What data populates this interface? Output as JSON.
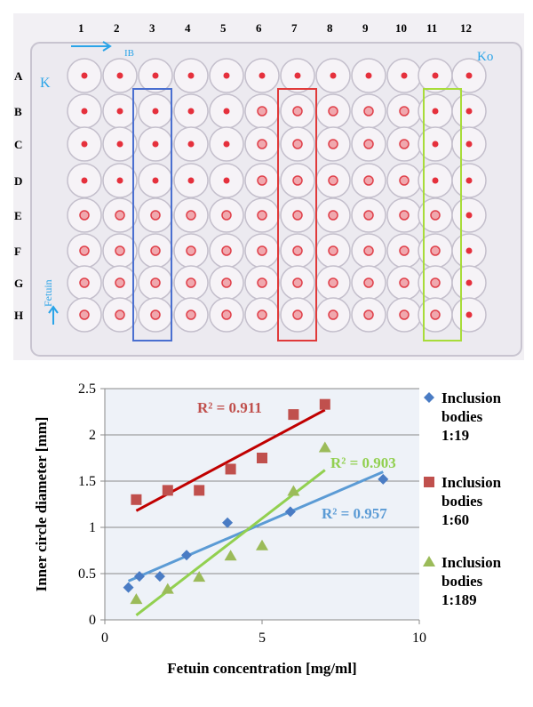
{
  "plate": {
    "columns": [
      "1",
      "2",
      "3",
      "4",
      "5",
      "6",
      "7",
      "8",
      "9",
      "10",
      "11",
      "12"
    ],
    "rows": [
      "A",
      "B",
      "C",
      "D",
      "E",
      "F",
      "G",
      "H"
    ],
    "annotations": {
      "top_left": "IB",
      "top_right": "Ko",
      "row_a": "K",
      "left_side": "Fetuin"
    },
    "highlight_boxes": [
      {
        "column": "3",
        "color": "#4a6fd0"
      },
      {
        "column": "7",
        "color": "#e03a3a"
      },
      {
        "column": "11",
        "color": "#a8dc3a"
      }
    ]
  },
  "chart_data": {
    "type": "scatter",
    "xlabel": "Fetuin concentration [mg/ml]",
    "ylabel": "Inner circle diameter [mm]",
    "xlim": [
      0,
      10
    ],
    "ylim": [
      0,
      2.5
    ],
    "xticks": [
      "0",
      "5",
      "10"
    ],
    "yticks": [
      "0",
      "0.5",
      "1",
      "1.5",
      "2",
      "2.5"
    ],
    "grid": true,
    "legend_position": "right",
    "series": [
      {
        "name": "Inclusion bodies 1:19",
        "legend_lines": [
          "Inclusion",
          "bodies",
          "1:19"
        ],
        "marker": "diamond",
        "color": "#4a7cc4",
        "trend_color": "#5b9bd5",
        "x": [
          0.75,
          1.1,
          1.75,
          2.6,
          3.9,
          5.9,
          8.85
        ],
        "y": [
          0.35,
          0.47,
          0.47,
          0.7,
          1.05,
          1.17,
          1.52
        ],
        "trend": {
          "x": [
            0.75,
            8.85
          ],
          "y": [
            0.42,
            1.6
          ]
        },
        "r2": "R² = 0.957"
      },
      {
        "name": "Inclusion bodies 1:60",
        "legend_lines": [
          "Inclusion",
          "bodies",
          "1:60"
        ],
        "marker": "square",
        "color": "#c0504d",
        "trend_color": "#c00000",
        "x": [
          1,
          2,
          3,
          4,
          5,
          6,
          7
        ],
        "y": [
          1.3,
          1.4,
          1.4,
          1.63,
          1.75,
          2.22,
          2.33
        ],
        "trend": {
          "x": [
            1,
            7
          ],
          "y": [
            1.18,
            2.27
          ]
        },
        "r2": "R² = 0.911"
      },
      {
        "name": "Inclusion bodies 1:189",
        "legend_lines": [
          "Inclusion",
          "bodies",
          "1:189"
        ],
        "marker": "triangle",
        "color": "#9bbb59",
        "trend_color": "#92d050",
        "x": [
          1,
          2,
          3,
          4,
          5,
          6,
          7
        ],
        "y": [
          0.22,
          0.33,
          0.46,
          0.69,
          0.8,
          1.39,
          1.86
        ],
        "trend": {
          "x": [
            1,
            7
          ],
          "y": [
            0.05,
            1.62
          ]
        },
        "r2": "R² = 0.903"
      }
    ]
  }
}
